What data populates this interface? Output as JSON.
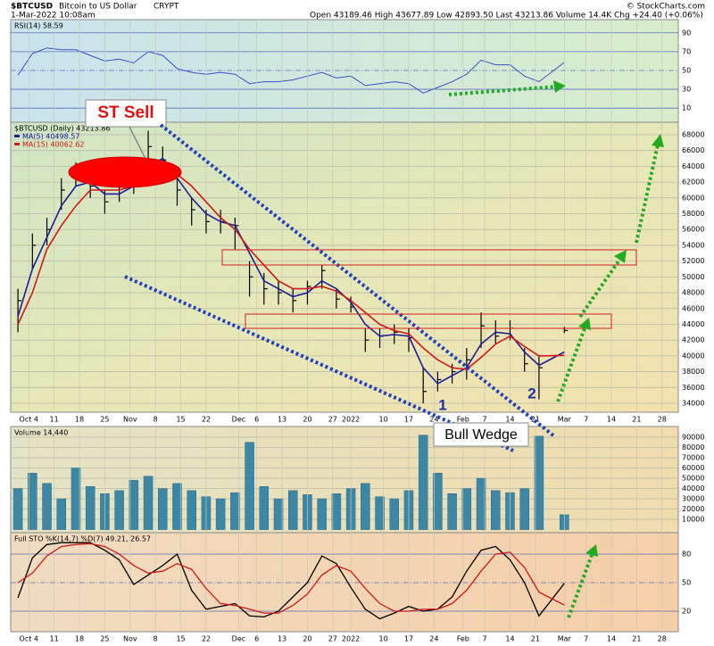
{
  "header": {
    "symbol": "$BTCUSD",
    "name": "Bitcoin to US Dollar",
    "exchange": "CRYPT",
    "date": "1-Mar-2022 10:08am",
    "quote": "Open 43189.46  High 43677.89  Low 42893.50  Last 43213.86  Volume 14.4K  Chg +24.40 (+0.06%)",
    "credit": "© StockCharts.com"
  },
  "chart_data": [
    {
      "type": "line",
      "title": "RSI(14) 58.59",
      "color": "#3a50c8",
      "x": [
        0,
        4,
        8,
        12,
        16,
        20,
        24,
        28,
        32,
        36,
        40,
        44,
        48,
        52,
        56,
        60,
        64,
        68,
        72,
        76,
        80,
        84,
        88,
        92,
        96,
        100,
        104,
        108,
        112,
        116,
        120,
        124,
        128,
        132,
        136,
        140,
        144,
        151
      ],
      "values": [
        45,
        68,
        74,
        72,
        72,
        66,
        60,
        62,
        58,
        70,
        66,
        52,
        48,
        46,
        48,
        46,
        36,
        38,
        38,
        40,
        44,
        48,
        42,
        44,
        34,
        36,
        38,
        36,
        26,
        32,
        38,
        46,
        61,
        56,
        56,
        44,
        38,
        58.59
      ],
      "xlim": [
        -2,
        182.5
      ],
      "ylim": [
        -5,
        104
      ],
      "yticks": [
        90,
        70,
        50,
        30,
        10
      ]
    },
    {
      "type": "ohlc",
      "title": "$BTCUSD (Daily) 43213.86",
      "color": "#000000",
      "x": [
        0,
        4,
        8,
        12,
        16,
        20,
        24,
        28,
        32,
        36,
        40,
        44,
        48,
        52,
        56,
        60,
        64,
        68,
        72,
        76,
        80,
        84,
        88,
        92,
        96,
        100,
        104,
        108,
        112,
        116,
        120,
        124,
        128,
        132,
        136,
        140,
        144,
        151
      ],
      "high": [
        48500,
        55500,
        57500,
        62500,
        64500,
        63500,
        61000,
        62500,
        63500,
        68500,
        66500,
        63000,
        60000,
        58500,
        58500,
        57500,
        52000,
        50500,
        49500,
        48500,
        49500,
        51500,
        48500,
        47500,
        43500,
        43500,
        44000,
        43500,
        38500,
        38000,
        39000,
        41000,
        45500,
        44500,
        44500,
        41000,
        40000,
        43677.89
      ],
      "low": [
        43000,
        51000,
        54000,
        58500,
        61500,
        60000,
        58000,
        59500,
        60500,
        63000,
        63000,
        59000,
        56500,
        55500,
        55500,
        53500,
        47500,
        46500,
        46500,
        45500,
        46500,
        48500,
        46000,
        45500,
        40500,
        41000,
        41500,
        40500,
        34000,
        35500,
        36500,
        37000,
        41000,
        41500,
        42000,
        38000,
        34500,
        42893.5
      ],
      "close": [
        47000,
        54000,
        56000,
        61000,
        63500,
        61500,
        59500,
        61500,
        62000,
        66500,
        64800,
        61000,
        58500,
        57000,
        57000,
        56500,
        50000,
        48500,
        48000,
        47000,
        48800,
        50800,
        47200,
        46200,
        42000,
        42500,
        43000,
        42300,
        35500,
        37000,
        38000,
        39500,
        43800,
        42500,
        43500,
        39000,
        38500,
        43213.86
      ],
      "series": [
        {
          "name": "MA(5) 40498.57",
          "color": "#1c1c9c",
          "values": [
            45000,
            51000,
            55000,
            59000,
            61500,
            62000,
            60500,
            60500,
            61500,
            64000,
            65000,
            62500,
            60000,
            58000,
            57000,
            56500,
            53000,
            49500,
            48500,
            47500,
            48000,
            49500,
            48500,
            46800,
            44000,
            42500,
            42700,
            42500,
            38500,
            36500,
            37500,
            38500,
            41500,
            43000,
            42800,
            40500,
            38800,
            40498.57
          ]
        },
        {
          "name": "MA(15) 40062.62",
          "color": "#d01818",
          "values": [
            44000,
            48000,
            53500,
            56500,
            59000,
            61000,
            61000,
            61000,
            61500,
            62500,
            63500,
            63000,
            61500,
            59500,
            57500,
            56000,
            53500,
            51500,
            49500,
            48500,
            48500,
            48800,
            48200,
            47000,
            45500,
            44000,
            43200,
            42800,
            41000,
            39500,
            38500,
            38300,
            39800,
            41500,
            42500,
            41200,
            40000,
            40062.62
          ]
        }
      ],
      "xlim": [
        -2,
        182.5
      ],
      "ylim": [
        32870,
        69580
      ],
      "yticks": [
        34000,
        36000,
        38000,
        40000,
        42000,
        44000,
        46000,
        48000,
        50000,
        52000,
        54000,
        56000,
        58000,
        60000,
        62000,
        64000,
        66000,
        68000
      ],
      "xticks": [
        {
          "value": 3,
          "label": "Oct 4"
        },
        {
          "value": 10,
          "label": "11"
        },
        {
          "value": 17,
          "label": "18"
        },
        {
          "value": 24,
          "label": "25"
        },
        {
          "value": 31,
          "label": "Nov"
        },
        {
          "value": 38,
          "label": "8"
        },
        {
          "value": 45,
          "label": "15"
        },
        {
          "value": 52,
          "label": "22"
        },
        {
          "value": 61,
          "label": "Dec"
        },
        {
          "value": 66,
          "label": "6"
        },
        {
          "value": 73,
          "label": "13"
        },
        {
          "value": 80,
          "label": "20"
        },
        {
          "value": 87,
          "label": "27"
        },
        {
          "value": 92,
          "label": "2022"
        },
        {
          "value": 101,
          "label": "10"
        },
        {
          "value": 108,
          "label": "17"
        },
        {
          "value": 115,
          "label": "24"
        },
        {
          "value": 123,
          "label": "Feb"
        },
        {
          "value": 129,
          "label": "7"
        },
        {
          "value": 136,
          "label": "14"
        },
        {
          "value": 143,
          "label": "21"
        },
        {
          "value": 151,
          "label": "Mar"
        },
        {
          "value": 157,
          "label": "7"
        },
        {
          "value": 164,
          "label": "14"
        },
        {
          "value": 171,
          "label": "21"
        },
        {
          "value": 178,
          "label": "28"
        }
      ],
      "annotations": [
        "ST Sell",
        "1",
        "2",
        "Bull Wedge"
      ]
    },
    {
      "type": "bar",
      "title": "Volume 14,440",
      "color": "#3d87a6",
      "x": [
        0,
        4,
        8,
        12,
        16,
        20,
        24,
        28,
        32,
        36,
        40,
        44,
        48,
        52,
        56,
        60,
        64,
        68,
        72,
        76,
        80,
        84,
        88,
        92,
        96,
        100,
        104,
        108,
        112,
        116,
        120,
        124,
        128,
        132,
        136,
        140,
        144,
        151
      ],
      "values": [
        40000,
        55000,
        45000,
        30000,
        60000,
        42000,
        35000,
        38000,
        48000,
        52000,
        40000,
        45000,
        38000,
        32000,
        30000,
        36000,
        85000,
        42000,
        30000,
        38000,
        34000,
        30000,
        35000,
        40000,
        45000,
        32000,
        30000,
        38000,
        92000,
        55000,
        35000,
        40000,
        50000,
        38000,
        36000,
        40000,
        91000,
        14440
      ],
      "xlim": [
        -2,
        182.5
      ],
      "ylim": [
        -3000,
        100400
      ],
      "yticks": [
        10000,
        20000,
        30000,
        40000,
        50000,
        60000,
        70000,
        80000,
        90000
      ]
    },
    {
      "type": "line",
      "title": "Full STO %K(14,7) %D(7) 49.21, 26.57",
      "x": [
        0,
        4,
        8,
        12,
        16,
        20,
        24,
        28,
        32,
        36,
        40,
        44,
        48,
        52,
        56,
        60,
        64,
        68,
        72,
        76,
        80,
        84,
        88,
        92,
        96,
        100,
        104,
        108,
        112,
        116,
        120,
        124,
        128,
        132,
        136,
        140,
        144,
        151
      ],
      "series": [
        {
          "color": "#000000",
          "values": [
            34,
            76,
            90,
            92,
            92,
            92,
            84,
            74,
            48,
            58,
            68,
            80,
            42,
            22,
            25,
            28,
            15,
            14,
            20,
            35,
            50,
            78,
            70,
            45,
            22,
            12,
            18,
            25,
            20,
            22,
            35,
            62,
            84,
            88,
            74,
            50,
            15,
            49.21
          ]
        },
        {
          "color": "#d01818",
          "values": [
            50,
            60,
            78,
            88,
            90,
            91,
            88,
            80,
            68,
            60,
            62,
            70,
            64,
            44,
            28,
            26,
            22,
            18,
            18,
            26,
            38,
            58,
            68,
            62,
            44,
            28,
            20,
            20,
            22,
            22,
            28,
            42,
            62,
            80,
            82,
            66,
            40,
            26.57
          ]
        }
      ],
      "xlim": [
        -2,
        182.5
      ],
      "ylim": [
        -1.6,
        102.5
      ],
      "yticks": [
        80,
        50,
        20
      ],
      "xticks": [
        {
          "value": 3,
          "label": "Oct 4"
        },
        {
          "value": 10,
          "label": "11"
        },
        {
          "value": 17,
          "label": "18"
        },
        {
          "value": 24,
          "label": "25"
        },
        {
          "value": 31,
          "label": "Nov"
        },
        {
          "value": 38,
          "label": "8"
        },
        {
          "value": 45,
          "label": "15"
        },
        {
          "value": 52,
          "label": "22"
        },
        {
          "value": 61,
          "label": "Dec"
        },
        {
          "value": 66,
          "label": "6"
        },
        {
          "value": 73,
          "label": "13"
        },
        {
          "value": 80,
          "label": "20"
        },
        {
          "value": 87,
          "label": "27"
        },
        {
          "value": 92,
          "label": "2022"
        },
        {
          "value": 101,
          "label": "10"
        },
        {
          "value": 108,
          "label": "17"
        },
        {
          "value": 115,
          "label": "24"
        },
        {
          "value": 123,
          "label": "Feb"
        },
        {
          "value": 129,
          "label": "7"
        },
        {
          "value": 136,
          "label": "14"
        },
        {
          "value": 143,
          "label": "21"
        },
        {
          "value": 151,
          "label": "Mar"
        },
        {
          "value": 157,
          "label": "7"
        },
        {
          "value": 164,
          "label": "14"
        },
        {
          "value": 171,
          "label": "21"
        },
        {
          "value": 178,
          "label": "28"
        }
      ]
    }
  ]
}
